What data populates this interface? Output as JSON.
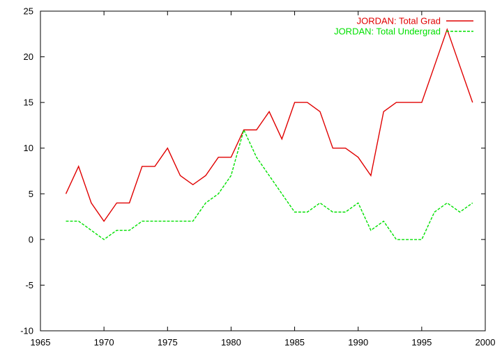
{
  "chart_data": {
    "type": "line",
    "title": "",
    "xlabel": "",
    "ylabel": "",
    "xlim": [
      1965,
      2000
    ],
    "ylim": [
      -10,
      25
    ],
    "xticks": [
      1965,
      1970,
      1975,
      1980,
      1985,
      1990,
      1995,
      2000
    ],
    "yticks": [
      -10,
      -5,
      0,
      5,
      10,
      15,
      20,
      25
    ],
    "grid": false,
    "legend_position": "top-right",
    "x": [
      1967,
      1968,
      1969,
      1970,
      1971,
      1972,
      1973,
      1974,
      1975,
      1976,
      1977,
      1978,
      1979,
      1980,
      1981,
      1982,
      1983,
      1984,
      1985,
      1986,
      1987,
      1988,
      1989,
      1990,
      1991,
      1992,
      1993,
      1994,
      1995,
      1996,
      1997,
      1998,
      1999
    ],
    "series": [
      {
        "name": "JORDAN: Total Grad",
        "color": "#e00000",
        "dash": "solid",
        "values": [
          5,
          8,
          4,
          2,
          4,
          4,
          8,
          8,
          10,
          7,
          6,
          7,
          9,
          9,
          12,
          12,
          14,
          11,
          15,
          15,
          14,
          10,
          10,
          9,
          7,
          14,
          15,
          15,
          15,
          19,
          23,
          19,
          15
        ]
      },
      {
        "name": "JORDAN: Total Undergrad",
        "color": "#00e000",
        "dash": "dashed",
        "values": [
          2,
          2,
          1,
          0,
          1,
          1,
          2,
          2,
          2,
          2,
          2,
          4,
          5,
          7,
          12,
          9,
          7,
          5,
          3,
          3,
          4,
          3,
          3,
          4,
          1,
          2,
          0,
          0,
          0,
          3,
          4,
          3,
          4
        ]
      }
    ]
  }
}
